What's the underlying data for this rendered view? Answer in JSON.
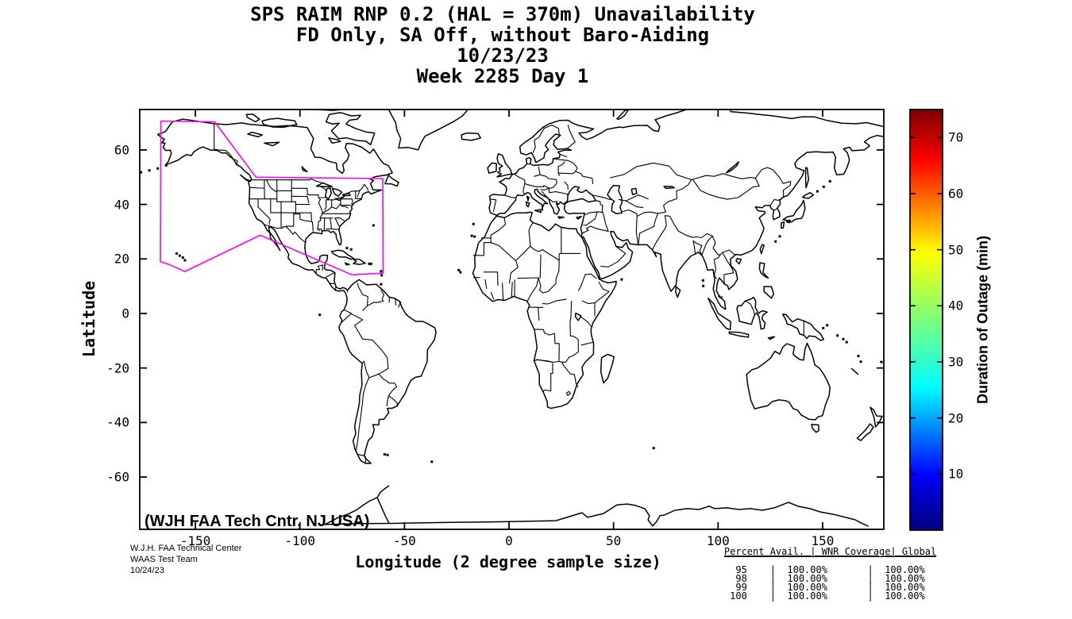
{
  "figure_title": {
    "line1": "SPS RAIM RNP 0.2 (HAL = 370m) Unavailability",
    "line2": "FD Only, SA Off, without Baro-Aiding",
    "line3": "10/23/23",
    "line4": "Week 2285 Day 1"
  },
  "chart_data": {
    "type": "heatmap",
    "title": "SPS RAIM RNP 0.2 (HAL = 370m) Unavailability",
    "subtitle": "FD Only, SA Off, without Baro-Aiding",
    "date": "10/23/23",
    "week_day": "Week 2285 Day 1",
    "xlabel": "Longitude (2 degree sample size)",
    "ylabel": "Latitude",
    "xlim": [
      -177,
      179
    ],
    "ylim": [
      -79,
      75
    ],
    "x_ticks": [
      -150,
      -100,
      -50,
      0,
      50,
      100,
      150
    ],
    "y_ticks": [
      60,
      40,
      20,
      0,
      -20,
      -40,
      -60
    ],
    "grid": false,
    "outage_points": [],
    "colorbar": {
      "label": "Duration of Outage (min)",
      "ticks": [
        10,
        20,
        30,
        40,
        50,
        60,
        70
      ],
      "min": 0,
      "max": 75,
      "colormap": "jet"
    },
    "waas_coverage_boundary": {
      "color": "#FF00FF",
      "vertices": [
        [
          -166.5,
          70.6
        ],
        [
          -140.8,
          70.3
        ],
        [
          -121,
          50
        ],
        [
          -60.4,
          49.5
        ],
        [
          -60.2,
          14.8
        ],
        [
          -75.2,
          14.2
        ],
        [
          -119,
          28.7
        ],
        [
          -155,
          15.4
        ],
        [
          -162.6,
          18
        ],
        [
          -166.7,
          19
        ]
      ]
    },
    "map_annotation": {
      "text": "(WJH FAA Tech Cntr, NJ USA)",
      "color": "#FF00FF"
    }
  },
  "footer": {
    "line1": "W.J.H. FAA Technical Center",
    "line2": "WAAS Test Team",
    "line3": "10/24/23"
  },
  "stats_table": {
    "columns": [
      "Percent Avail.",
      "WNR Coverage",
      "Global"
    ],
    "rows": [
      [
        "95",
        "100.00%",
        "100.00%"
      ],
      [
        "98",
        "100.00%",
        "100.00%"
      ],
      [
        "99",
        "100.00%",
        "100.00%"
      ],
      [
        "100",
        "100.00%",
        "100.00%"
      ]
    ]
  },
  "colors": {
    "annotation": "#FF00FF",
    "boundary": "#FF00FF",
    "map_line": "#000000",
    "background": "#FFFFFF"
  }
}
